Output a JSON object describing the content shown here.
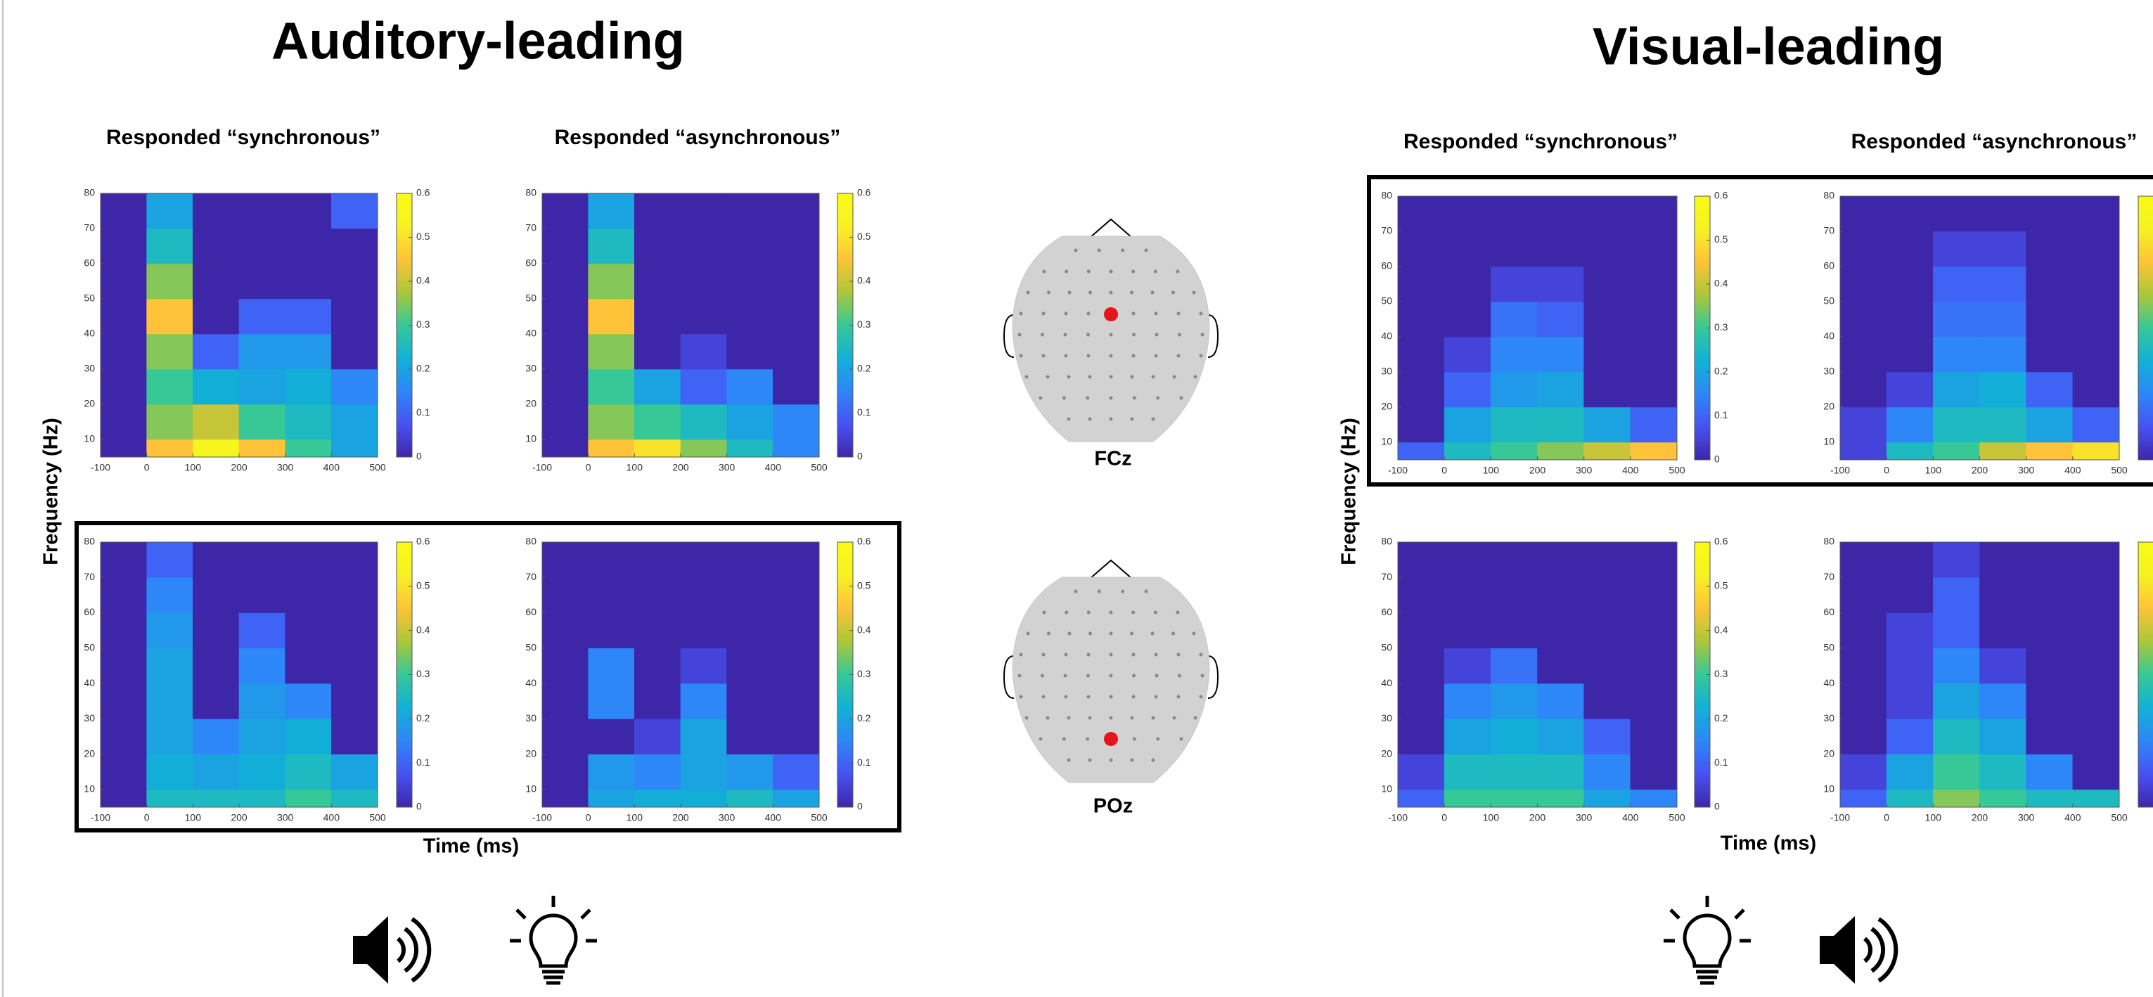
{
  "figure": {
    "left_title": "Auditory-leading",
    "right_title": "Visual-leading",
    "left_columns": [
      "Responded “synchronous”",
      "Responded “asynchronous”"
    ],
    "right_columns": [
      "Responded “synchronous”",
      "Responded “asynchronous”"
    ],
    "left_ylabel": "Frequency (Hz)",
    "right_ylabel": "Frequency (Hz)",
    "left_xlabel": "Time (ms)",
    "right_xlabel": "Time (ms)",
    "electrodes": [
      "FCz",
      "POz"
    ]
  },
  "chart_data": [
    {
      "type": "heatmap",
      "colormap": "parula",
      "xbins": [
        -100,
        0,
        100,
        200,
        300,
        400,
        500
      ],
      "ybins": [
        5,
        10,
        20,
        30,
        40,
        50,
        60,
        70,
        80
      ],
      "z": [
        [
          0,
          0.45,
          0.55,
          0.45,
          0.3,
          0.2
        ],
        [
          0,
          0.35,
          0.4,
          0.3,
          0.25,
          0.2
        ],
        [
          0,
          0.3,
          0.22,
          0.2,
          0.22,
          0.15
        ],
        [
          0,
          0.35,
          0.1,
          0.18,
          0.18,
          0
        ],
        [
          0,
          0.45,
          0,
          0.1,
          0.1,
          0
        ],
        [
          0,
          0.35,
          0,
          0,
          0,
          0
        ],
        [
          0,
          0.25,
          0,
          0,
          0,
          0
        ],
        [
          0,
          0.2,
          0,
          0,
          0,
          0.1
        ]
      ],
      "xlim": [
        -100,
        500
      ],
      "ylim": [
        5,
        80
      ],
      "xticks": [
        -100,
        0,
        100,
        200,
        300,
        400,
        500
      ],
      "yticks": [
        10,
        20,
        30,
        40,
        50,
        60,
        70,
        80
      ],
      "clim": [
        0,
        0.6
      ],
      "cticks": [
        0,
        0.1,
        0.2,
        0.3,
        0.4,
        0.5,
        0.6
      ]
    },
    {
      "type": "heatmap",
      "colormap": "parula",
      "xbins": [
        -100,
        0,
        100,
        200,
        300,
        400,
        500
      ],
      "ybins": [
        5,
        10,
        20,
        30,
        40,
        50,
        60,
        70,
        80
      ],
      "z": [
        [
          0,
          0.45,
          0.5,
          0.35,
          0.25,
          0.15
        ],
        [
          0,
          0.35,
          0.3,
          0.25,
          0.2,
          0.15
        ],
        [
          0,
          0.3,
          0.2,
          0.1,
          0.15,
          0
        ],
        [
          0,
          0.35,
          0,
          0.05,
          0,
          0
        ],
        [
          0,
          0.45,
          0,
          0,
          0,
          0
        ],
        [
          0,
          0.35,
          0,
          0,
          0,
          0
        ],
        [
          0,
          0.25,
          0,
          0,
          0,
          0
        ],
        [
          0,
          0.2,
          0,
          0,
          0,
          0
        ]
      ],
      "xlim": [
        -100,
        500
      ],
      "ylim": [
        5,
        80
      ],
      "xticks": [
        -100,
        0,
        100,
        200,
        300,
        400,
        500
      ],
      "yticks": [
        10,
        20,
        30,
        40,
        50,
        60,
        70,
        80
      ],
      "clim": [
        0,
        0.6
      ],
      "cticks": [
        0,
        0.1,
        0.2,
        0.3,
        0.4,
        0.5,
        0.6
      ]
    },
    {
      "type": "heatmap",
      "colormap": "parula",
      "xbins": [
        -100,
        0,
        100,
        200,
        300,
        400,
        500
      ],
      "ybins": [
        5,
        10,
        20,
        30,
        40,
        50,
        60,
        70,
        80
      ],
      "z": [
        [
          0,
          0.25,
          0.25,
          0.25,
          0.3,
          0.25
        ],
        [
          0,
          0.22,
          0.2,
          0.22,
          0.25,
          0.2
        ],
        [
          0,
          0.2,
          0.15,
          0.2,
          0.22,
          0
        ],
        [
          0,
          0.2,
          0,
          0.18,
          0.15,
          0
        ],
        [
          0,
          0.2,
          0,
          0.15,
          0,
          0
        ],
        [
          0,
          0.18,
          0,
          0.1,
          0,
          0
        ],
        [
          0,
          0.15,
          0,
          0,
          0,
          0
        ],
        [
          0,
          0.1,
          0,
          0,
          0,
          0
        ]
      ],
      "xlim": [
        -100,
        500
      ],
      "ylim": [
        5,
        80
      ],
      "xticks": [
        -100,
        0,
        100,
        200,
        300,
        400,
        500
      ],
      "yticks": [
        10,
        20,
        30,
        40,
        50,
        60,
        70,
        80
      ],
      "clim": [
        0,
        0.6
      ],
      "cticks": [
        0,
        0.1,
        0.2,
        0.3,
        0.4,
        0.5,
        0.6
      ]
    },
    {
      "type": "heatmap",
      "colormap": "parula",
      "xbins": [
        -100,
        0,
        100,
        200,
        300,
        400,
        500
      ],
      "ybins": [
        5,
        10,
        20,
        30,
        40,
        50,
        60,
        70,
        80
      ],
      "z": [
        [
          0,
          0.2,
          0.22,
          0.22,
          0.25,
          0.2
        ],
        [
          0,
          0.18,
          0.15,
          0.2,
          0.18,
          0.1
        ],
        [
          0,
          0,
          0.05,
          0.2,
          0,
          0
        ],
        [
          0,
          0.15,
          0,
          0.15,
          0,
          0
        ],
        [
          0,
          0.15,
          0,
          0.05,
          0,
          0
        ],
        [
          0,
          0,
          0,
          0,
          0,
          0
        ],
        [
          0,
          0,
          0,
          0,
          0,
          0
        ],
        [
          0,
          0,
          0,
          0,
          0,
          0
        ]
      ],
      "xlim": [
        -100,
        500
      ],
      "ylim": [
        5,
        80
      ],
      "xticks": [
        -100,
        0,
        100,
        200,
        300,
        400,
        500
      ],
      "yticks": [
        10,
        20,
        30,
        40,
        50,
        60,
        70,
        80
      ],
      "clim": [
        0,
        0.6
      ],
      "cticks": [
        0,
        0.1,
        0.2,
        0.3,
        0.4,
        0.5,
        0.6
      ]
    },
    {
      "type": "heatmap",
      "colormap": "parula",
      "xbins": [
        -100,
        0,
        100,
        200,
        300,
        400,
        500
      ],
      "ybins": [
        5,
        10,
        20,
        30,
        40,
        50,
        60,
        70,
        80
      ],
      "z": [
        [
          0.1,
          0.25,
          0.3,
          0.35,
          0.4,
          0.45
        ],
        [
          0,
          0.2,
          0.25,
          0.25,
          0.2,
          0.1
        ],
        [
          0,
          0.1,
          0.18,
          0.2,
          0,
          0
        ],
        [
          0,
          0.05,
          0.15,
          0.15,
          0,
          0
        ],
        [
          0,
          0,
          0.12,
          0.1,
          0,
          0
        ],
        [
          0,
          0,
          0.05,
          0.05,
          0,
          0
        ],
        [
          0,
          0,
          0,
          0,
          0,
          0
        ],
        [
          0,
          0,
          0,
          0,
          0,
          0
        ]
      ],
      "xlim": [
        -100,
        500
      ],
      "ylim": [
        5,
        80
      ],
      "xticks": [
        -100,
        0,
        100,
        200,
        300,
        400,
        500
      ],
      "yticks": [
        10,
        20,
        30,
        40,
        50,
        60,
        70,
        80
      ],
      "clim": [
        0,
        0.6
      ],
      "cticks": [
        0,
        0.1,
        0.2,
        0.3,
        0.4,
        0.5,
        0.6
      ]
    },
    {
      "type": "heatmap",
      "colormap": "parula",
      "xbins": [
        -100,
        0,
        100,
        200,
        300,
        400,
        500
      ],
      "ybins": [
        5,
        10,
        20,
        30,
        40,
        50,
        60,
        70,
        80
      ],
      "z": [
        [
          0.05,
          0.25,
          0.3,
          0.4,
          0.45,
          0.5
        ],
        [
          0.05,
          0.15,
          0.25,
          0.25,
          0.2,
          0.1
        ],
        [
          0,
          0.05,
          0.2,
          0.22,
          0.1,
          0
        ],
        [
          0,
          0,
          0.15,
          0.15,
          0,
          0
        ],
        [
          0,
          0,
          0.12,
          0.12,
          0,
          0
        ],
        [
          0,
          0,
          0.1,
          0.1,
          0,
          0
        ],
        [
          0,
          0,
          0.05,
          0.05,
          0,
          0
        ],
        [
          0,
          0,
          0,
          0,
          0,
          0
        ]
      ],
      "xlim": [
        -100,
        500
      ],
      "ylim": [
        5,
        80
      ],
      "xticks": [
        -100,
        0,
        100,
        200,
        300,
        400,
        500
      ],
      "yticks": [
        10,
        20,
        30,
        40,
        50,
        60,
        70,
        80
      ],
      "clim": [
        0,
        0.6
      ]
    },
    {
      "type": "heatmap",
      "colormap": "parula",
      "xbins": [
        -100,
        0,
        100,
        200,
        300,
        400,
        500
      ],
      "ybins": [
        5,
        10,
        20,
        30,
        40,
        50,
        60,
        70,
        80
      ],
      "z": [
        [
          0.1,
          0.3,
          0.3,
          0.3,
          0.2,
          0.15
        ],
        [
          0.05,
          0.25,
          0.25,
          0.25,
          0.15,
          0
        ],
        [
          0,
          0.2,
          0.22,
          0.2,
          0.1,
          0
        ],
        [
          0,
          0.15,
          0.18,
          0.15,
          0,
          0
        ],
        [
          0,
          0.05,
          0.12,
          0,
          0,
          0
        ],
        [
          0,
          0,
          0,
          0,
          0,
          0
        ],
        [
          0,
          0,
          0,
          0,
          0,
          0
        ],
        [
          0,
          0,
          0,
          0,
          0,
          0
        ]
      ],
      "xlim": [
        -100,
        500
      ],
      "ylim": [
        5,
        80
      ],
      "xticks": [
        -100,
        0,
        100,
        200,
        300,
        400,
        500
      ],
      "yticks": [
        10,
        20,
        30,
        40,
        50,
        60,
        70,
        80
      ],
      "clim": [
        0,
        0.6
      ],
      "cticks": [
        0,
        0.1,
        0.2,
        0.3,
        0.4,
        0.5,
        0.6
      ]
    },
    {
      "type": "heatmap",
      "colormap": "parula",
      "xbins": [
        -100,
        0,
        100,
        200,
        300,
        400,
        500
      ],
      "ybins": [
        5,
        10,
        20,
        30,
        40,
        50,
        60,
        70,
        80
      ],
      "z": [
        [
          0.1,
          0.25,
          0.35,
          0.3,
          0.25,
          0.25
        ],
        [
          0.05,
          0.2,
          0.3,
          0.25,
          0.15,
          0
        ],
        [
          0,
          0.1,
          0.25,
          0.2,
          0,
          0
        ],
        [
          0,
          0.05,
          0.2,
          0.15,
          0,
          0
        ],
        [
          0,
          0.05,
          0.15,
          0.05,
          0,
          0
        ],
        [
          0,
          0.05,
          0.1,
          0,
          0,
          0
        ],
        [
          0,
          0,
          0.1,
          0,
          0,
          0
        ],
        [
          0,
          0,
          0.05,
          0,
          0,
          0
        ]
      ],
      "xlim": [
        -100,
        500
      ],
      "ylim": [
        5,
        80
      ],
      "xticks": [
        -100,
        0,
        100,
        200,
        300,
        400,
        500
      ],
      "yticks": [
        10,
        20,
        30,
        40,
        50,
        60,
        70,
        80
      ],
      "clim": [
        0,
        0.6
      ]
    }
  ]
}
